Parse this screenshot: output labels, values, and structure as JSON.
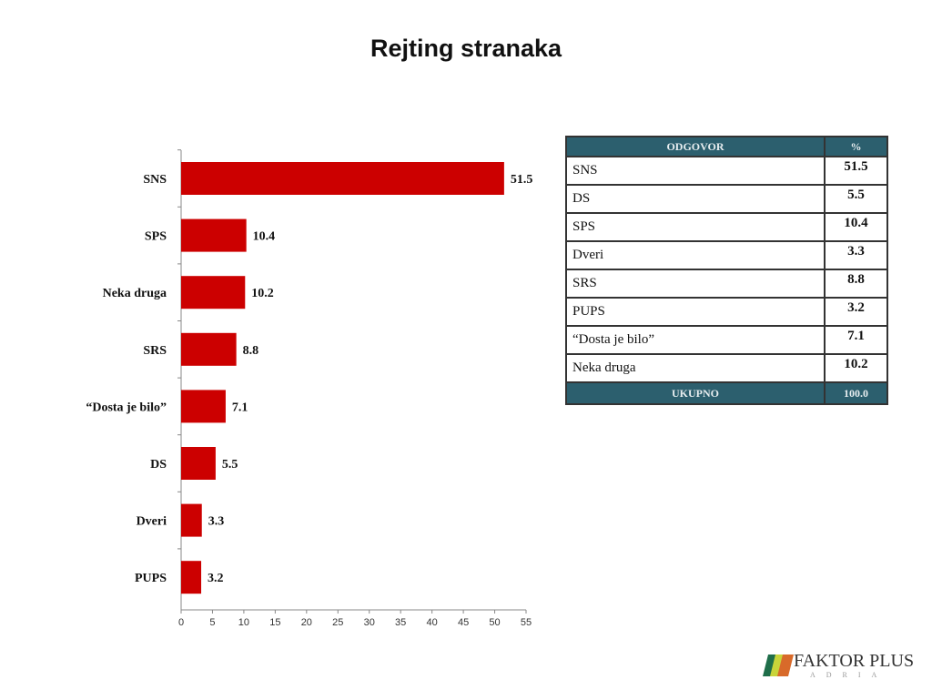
{
  "chart_data": {
    "type": "bar",
    "orientation": "horizontal",
    "title": "Rejting stranaka",
    "categories": [
      "SNS",
      "SPS",
      "Neka druga",
      "SRS",
      "“Dosta je bilo”",
      "DS",
      "Dveri",
      "PUPS"
    ],
    "values": [
      51.5,
      10.4,
      10.2,
      8.8,
      7.1,
      5.5,
      3.3,
      3.2
    ],
    "xlim": [
      0,
      55
    ],
    "xticks": [
      0,
      5,
      10,
      15,
      20,
      25,
      30,
      35,
      40,
      45,
      50,
      55
    ],
    "grid": false,
    "bar_color": "#cc0000"
  },
  "table": {
    "headers": [
      "ODGOVOR",
      "%"
    ],
    "rows": [
      [
        "SNS",
        "51.5"
      ],
      [
        "DS",
        "5.5"
      ],
      [
        "SPS",
        "10.4"
      ],
      [
        "Dveri",
        "3.3"
      ],
      [
        "SRS",
        "8.8"
      ],
      [
        "PUPS",
        "3.2"
      ],
      [
        "“Dosta je bilo”",
        "7.1"
      ],
      [
        "Neka druga",
        "10.2"
      ]
    ],
    "footer": [
      "UKUPNO",
      "100.0"
    ],
    "header_color": "#2c5f6e"
  },
  "logo": {
    "name": "FAKTOR PLUS",
    "sub": "ADRIA"
  }
}
